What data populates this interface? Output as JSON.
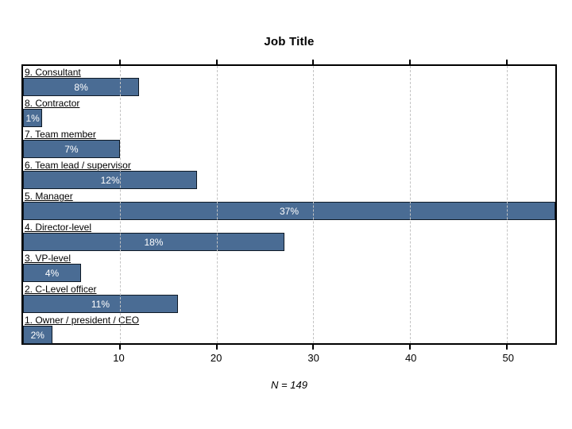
{
  "chart_data": {
    "type": "bar",
    "orientation": "horizontal",
    "title": "Job Title",
    "note": "N = 149",
    "xlabel": "",
    "ylabel": "",
    "xlim": [
      0,
      55
    ],
    "x_ticks": [
      10,
      20,
      30,
      40,
      50
    ],
    "grid": "vertical-dashed",
    "legend_position": "none",
    "bar_color": "#4a6c94",
    "bar_border_color": "#0f1a26",
    "categories": [
      "9. Consultant",
      "8. Contractor",
      "7. Team member",
      "6. Team lead / supervisor",
      "5. Manager",
      "4. Director-level",
      "3. VP-level",
      "2. C-Level officer",
      "1. Owner / president / CEO"
    ],
    "values": [
      12,
      2,
      10,
      18,
      55,
      27,
      6,
      16,
      3
    ],
    "bar_labels": [
      "8%",
      "1%",
      "7%",
      "12%",
      "37%",
      "18%",
      "4%",
      "11%",
      "2%"
    ]
  }
}
